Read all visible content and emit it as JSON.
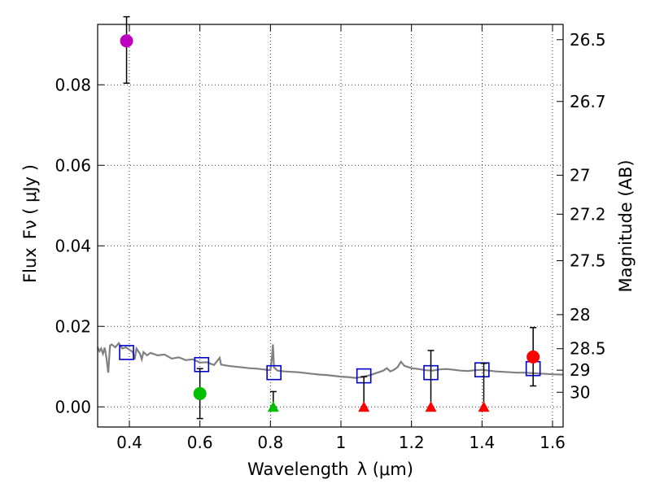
{
  "chart_data": {
    "type": "scatter",
    "xlabel": "Wavelength",
    "xlabel_symbol": "λ (μm)",
    "ylabel": "Flux",
    "ylabel_symbol": "Fν ( μJy )",
    "y2label": "Magnitude (AB)",
    "xlim": [
      0.31,
      1.63
    ],
    "ylim": [
      -0.005,
      0.095
    ],
    "grid": true,
    "x_ticks": [
      {
        "value": 0.4,
        "label": "0.4"
      },
      {
        "value": 0.6,
        "label": "0.6"
      },
      {
        "value": 0.8,
        "label": "0.8"
      },
      {
        "value": 1.0,
        "label": "1"
      },
      {
        "value": 1.2,
        "label": "1.2"
      },
      {
        "value": 1.4,
        "label": "1.4"
      },
      {
        "value": 1.6,
        "label": "1.6"
      }
    ],
    "y_ticks": [
      {
        "value": 0.0,
        "label": "0.00"
      },
      {
        "value": 0.02,
        "label": "0.02"
      },
      {
        "value": 0.04,
        "label": "0.04"
      },
      {
        "value": 0.06,
        "label": "0.06"
      },
      {
        "value": 0.08,
        "label": "0.08"
      }
    ],
    "y2_ticks": [
      {
        "value": 26.5,
        "label": "26.5"
      },
      {
        "value": 26.7,
        "label": "26.7"
      },
      {
        "value": 27.0,
        "label": "27"
      },
      {
        "value": 27.2,
        "label": "27.2"
      },
      {
        "value": 27.5,
        "label": "27.5"
      },
      {
        "value": 28.0,
        "label": "28"
      },
      {
        "value": 28.5,
        "label": "28.5"
      },
      {
        "value": 29.0,
        "label": "29"
      },
      {
        "value": 30.0,
        "label": "30"
      }
    ],
    "sed_model": [
      [
        0.31,
        0.0148
      ],
      [
        0.315,
        0.0138
      ],
      [
        0.32,
        0.0145
      ],
      [
        0.325,
        0.0132
      ],
      [
        0.33,
        0.0147
      ],
      [
        0.335,
        0.0122
      ],
      [
        0.34,
        0.0085
      ],
      [
        0.345,
        0.0152
      ],
      [
        0.35,
        0.0155
      ],
      [
        0.36,
        0.0148
      ],
      [
        0.37,
        0.0158
      ],
      [
        0.38,
        0.0145
      ],
      [
        0.39,
        0.0148
      ],
      [
        0.4,
        0.0142
      ],
      [
        0.41,
        0.0136
      ],
      [
        0.415,
        0.0118
      ],
      [
        0.42,
        0.0145
      ],
      [
        0.43,
        0.0132
      ],
      [
        0.435,
        0.0118
      ],
      [
        0.44,
        0.0136
      ],
      [
        0.45,
        0.0128
      ],
      [
        0.46,
        0.0134
      ],
      [
        0.48,
        0.0128
      ],
      [
        0.5,
        0.013
      ],
      [
        0.52,
        0.012
      ],
      [
        0.54,
        0.0123
      ],
      [
        0.56,
        0.0116
      ],
      [
        0.58,
        0.0118
      ],
      [
        0.6,
        0.011
      ],
      [
        0.62,
        0.0111
      ],
      [
        0.64,
        0.0104
      ],
      [
        0.656,
        0.0122
      ],
      [
        0.66,
        0.0105
      ],
      [
        0.68,
        0.0102
      ],
      [
        0.7,
        0.01
      ],
      [
        0.72,
        0.0098
      ],
      [
        0.74,
        0.0096
      ],
      [
        0.76,
        0.0095
      ],
      [
        0.78,
        0.0093
      ],
      [
        0.8,
        0.0091
      ],
      [
        0.804,
        0.012
      ],
      [
        0.807,
        0.0155
      ],
      [
        0.81,
        0.0098
      ],
      [
        0.82,
        0.009
      ],
      [
        0.84,
        0.0088
      ],
      [
        0.86,
        0.0087
      ],
      [
        0.88,
        0.0086
      ],
      [
        0.9,
        0.0084
      ],
      [
        0.92,
        0.0082
      ],
      [
        0.94,
        0.008
      ],
      [
        0.96,
        0.0079
      ],
      [
        0.98,
        0.0077
      ],
      [
        1.0,
        0.0075
      ],
      [
        1.02,
        0.0074
      ],
      [
        1.04,
        0.0072
      ],
      [
        1.06,
        0.0074
      ],
      [
        1.08,
        0.0078
      ],
      [
        1.1,
        0.0084
      ],
      [
        1.12,
        0.009
      ],
      [
        1.13,
        0.0096
      ],
      [
        1.14,
        0.0088
      ],
      [
        1.15,
        0.0092
      ],
      [
        1.16,
        0.0098
      ],
      [
        1.17,
        0.0112
      ],
      [
        1.18,
        0.0102
      ],
      [
        1.2,
        0.0096
      ],
      [
        1.22,
        0.0094
      ],
      [
        1.24,
        0.0091
      ],
      [
        1.26,
        0.009
      ],
      [
        1.28,
        0.0093
      ],
      [
        1.3,
        0.0094
      ],
      [
        1.32,
        0.0092
      ],
      [
        1.34,
        0.009
      ],
      [
        1.36,
        0.0089
      ],
      [
        1.38,
        0.0091
      ],
      [
        1.4,
        0.0092
      ],
      [
        1.42,
        0.009
      ],
      [
        1.44,
        0.0088
      ],
      [
        1.46,
        0.0087
      ],
      [
        1.48,
        0.0086
      ],
      [
        1.5,
        0.0085
      ],
      [
        1.52,
        0.0085
      ],
      [
        1.54,
        0.0084
      ],
      [
        1.56,
        0.0083
      ],
      [
        1.58,
        0.0082
      ],
      [
        1.6,
        0.0081
      ],
      [
        1.63,
        0.008
      ]
    ],
    "model_bandpass": [
      {
        "x": 0.392,
        "y": 0.0135
      },
      {
        "x": 0.605,
        "y": 0.0105
      },
      {
        "x": 0.81,
        "y": 0.0085
      },
      {
        "x": 1.065,
        "y": 0.0077
      },
      {
        "x": 1.255,
        "y": 0.0085
      },
      {
        "x": 1.4,
        "y": 0.0092
      },
      {
        "x": 1.545,
        "y": 0.0095
      }
    ],
    "detections": [
      {
        "x": 0.392,
        "y": 0.0909,
        "yerr_low": 0.0105,
        "yerr_high": 0.006,
        "color": "#bf00bf"
      },
      {
        "x": 0.6,
        "y": 0.0033,
        "yerr_low": 0.0062,
        "yerr_high": 0.0062,
        "color": "#00bf00"
      },
      {
        "x": 1.545,
        "y": 0.0124,
        "yerr_low": 0.0072,
        "yerr_high": 0.0073,
        "color": "#ff0000"
      }
    ],
    "upper_limits": [
      {
        "x": 0.808,
        "y": 0.0,
        "err_top": 0.0038,
        "color": "#00bf00"
      },
      {
        "x": 1.065,
        "y": 0.0,
        "err_top": 0.0075,
        "color": "#ff0000"
      },
      {
        "x": 1.255,
        "y": 0.0,
        "err_top": 0.014,
        "color": "#ff0000"
      },
      {
        "x": 1.405,
        "y": 0.0,
        "err_top": 0.0108,
        "color": "#ff0000"
      }
    ],
    "colors": {
      "model_line": "#808080",
      "model_box": "#0000cc",
      "errorbar": "#000000"
    }
  }
}
